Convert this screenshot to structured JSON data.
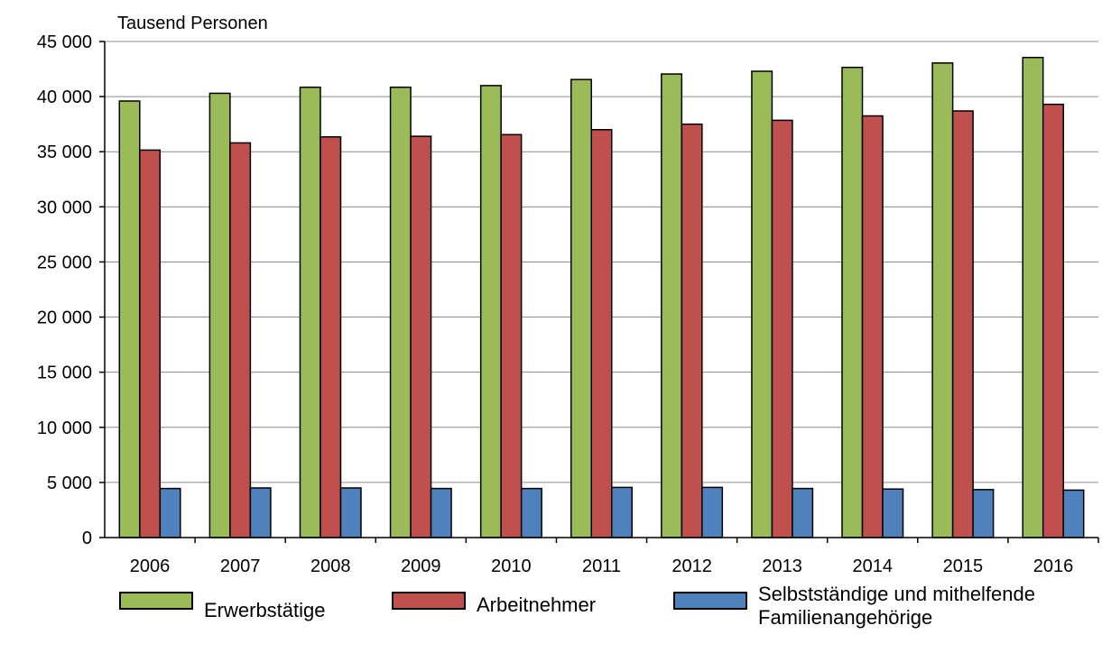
{
  "chart_data": {
    "type": "bar",
    "unit_label": "Tausend Personen",
    "categories": [
      "2006",
      "2007",
      "2008",
      "2009",
      "2010",
      "2011",
      "2012",
      "2013",
      "2014",
      "2015",
      "2016"
    ],
    "series": [
      {
        "name": "Erwerbstätige",
        "color": "#9BBB59",
        "values": [
          39600,
          40300,
          40850,
          40850,
          41000,
          41550,
          42050,
          42300,
          42650,
          43050,
          43550
        ]
      },
      {
        "name": "Arbeitnehmer",
        "color": "#C0504D",
        "values": [
          35150,
          35800,
          36350,
          36400,
          36550,
          37000,
          37500,
          37850,
          38250,
          38700,
          39300
        ]
      },
      {
        "name": "Selbstständige und mithelfende Familienangehörige",
        "color": "#4F81BD",
        "values": [
          4450,
          4500,
          4500,
          4450,
          4450,
          4550,
          4550,
          4450,
          4400,
          4350,
          4300
        ]
      }
    ],
    "yticks": [
      "0",
      "5 000",
      "10 000",
      "15 000",
      "20 000",
      "25 000",
      "30 000",
      "35 000",
      "40 000",
      "45 000"
    ],
    "ylim": [
      0,
      45000
    ],
    "grid": true,
    "legend_position": "bottom"
  }
}
